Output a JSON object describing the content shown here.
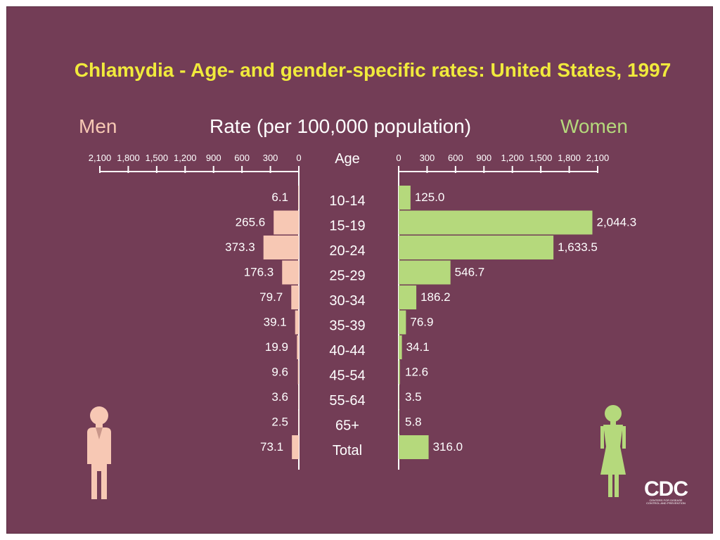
{
  "chart_data": {
    "type": "bar",
    "orientation": "horizontal",
    "layout": "population-pyramid",
    "title": "Chlamydia - Age- and gender-specific rates:  United States, 1997",
    "xlabel": "Rate (per 100,000 population)",
    "category_header": "Age",
    "categories": [
      "10-14",
      "15-19",
      "20-24",
      "25-29",
      "30-34",
      "35-39",
      "40-44",
      "45-54",
      "55-64",
      "65+",
      "Total"
    ],
    "xlim": [
      0,
      2100
    ],
    "tick_values": [
      0,
      300,
      600,
      900,
      1200,
      1500,
      1800,
      2100
    ],
    "tick_labels": [
      "0",
      "300",
      "600",
      "900",
      "1,200",
      "1,500",
      "1,800",
      "2,100"
    ],
    "series": [
      {
        "name": "Men",
        "side": "left",
        "color": "#f7c8b4",
        "values": [
          6.1,
          265.6,
          373.3,
          176.3,
          79.7,
          39.1,
          19.9,
          9.6,
          3.6,
          2.5,
          73.1
        ],
        "labels": [
          "6.1",
          "265.6",
          "373.3",
          "176.3",
          "79.7",
          "39.1",
          "19.9",
          "9.6",
          "3.6",
          "2.5",
          "73.1"
        ]
      },
      {
        "name": "Women",
        "side": "right",
        "color": "#b5d97c",
        "values": [
          125.0,
          2044.3,
          1633.5,
          546.7,
          186.2,
          76.9,
          34.1,
          12.6,
          3.5,
          5.8,
          316.0
        ],
        "labels": [
          "125.0",
          "2,044.3",
          "1,633.5",
          "546.7",
          "186.2",
          "76.9",
          "34.1",
          "12.6",
          "3.5",
          "5.8",
          "316.0"
        ]
      }
    ],
    "legend": "top-left and top-right labels",
    "grid": false
  },
  "colors": {
    "background": "#733d56",
    "title": "#f0ea3c",
    "text": "#ffffff",
    "men": "#f7c8b4",
    "women": "#b5d97c"
  },
  "logo": {
    "text": "CDC",
    "subtext": "CENTERS FOR DISEASE CONTROL AND PREVENTION"
  },
  "icons": [
    "man-figure-icon",
    "woman-figure-icon"
  ]
}
